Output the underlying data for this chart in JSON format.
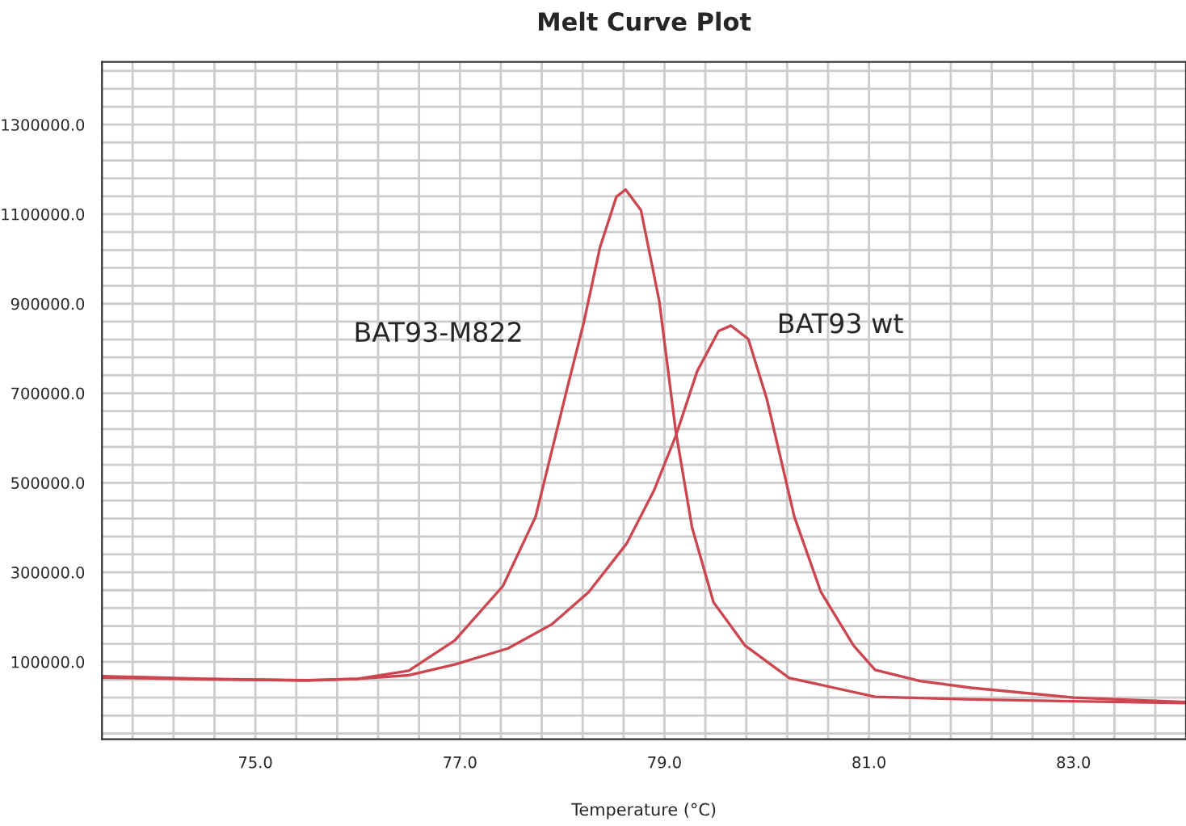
{
  "chart_data": {
    "type": "line",
    "title": "Melt Curve Plot",
    "xlabel": "Temperature (°C)",
    "xlim": [
      73.5,
      84.1
    ],
    "ylim": [
      -73000,
      1440000
    ],
    "xticks": [
      {
        "value": 73.8,
        "label": null
      },
      {
        "value": 74.2,
        "label": null
      },
      {
        "value": 74.6,
        "label": null
      },
      {
        "value": 75.0,
        "label": "75.0"
      },
      {
        "value": 75.4,
        "label": null
      },
      {
        "value": 75.8,
        "label": null
      },
      {
        "value": 76.2,
        "label": null
      },
      {
        "value": 76.6,
        "label": null
      },
      {
        "value": 77.0,
        "label": "77.0"
      },
      {
        "value": 77.4,
        "label": null
      },
      {
        "value": 77.8,
        "label": null
      },
      {
        "value": 78.2,
        "label": null
      },
      {
        "value": 78.6,
        "label": null
      },
      {
        "value": 79.0,
        "label": "79.0"
      },
      {
        "value": 79.4,
        "label": null
      },
      {
        "value": 79.8,
        "label": null
      },
      {
        "value": 80.2,
        "label": null
      },
      {
        "value": 80.6,
        "label": null
      },
      {
        "value": 81.0,
        "label": "81.0"
      },
      {
        "value": 81.4,
        "label": null
      },
      {
        "value": 81.8,
        "label": null
      },
      {
        "value": 82.2,
        "label": null
      },
      {
        "value": 82.6,
        "label": null
      },
      {
        "value": 83.0,
        "label": "83.0"
      },
      {
        "value": 83.4,
        "label": null
      },
      {
        "value": 83.8,
        "label": null
      }
    ],
    "yticks": [
      {
        "value": -60000,
        "label": null
      },
      {
        "value": -20000,
        "label": null
      },
      {
        "value": 20000,
        "label": null
      },
      {
        "value": 60000,
        "label": null
      },
      {
        "value": 100000,
        "label": "100000.0"
      },
      {
        "value": 140000,
        "label": null
      },
      {
        "value": 180000,
        "label": null
      },
      {
        "value": 220000,
        "label": null
      },
      {
        "value": 260000,
        "label": null
      },
      {
        "value": 300000,
        "label": "300000.0"
      },
      {
        "value": 340000,
        "label": null
      },
      {
        "value": 380000,
        "label": null
      },
      {
        "value": 420000,
        "label": null
      },
      {
        "value": 460000,
        "label": null
      },
      {
        "value": 500000,
        "label": "500000.0"
      },
      {
        "value": 540000,
        "label": null
      },
      {
        "value": 580000,
        "label": null
      },
      {
        "value": 620000,
        "label": null
      },
      {
        "value": 660000,
        "label": null
      },
      {
        "value": 700000,
        "label": "700000.0"
      },
      {
        "value": 740000,
        "label": null
      },
      {
        "value": 780000,
        "label": null
      },
      {
        "value": 820000,
        "label": null
      },
      {
        "value": 860000,
        "label": null
      },
      {
        "value": 900000,
        "label": "900000.0"
      },
      {
        "value": 940000,
        "label": null
      },
      {
        "value": 980000,
        "label": null
      },
      {
        "value": 1020000,
        "label": null
      },
      {
        "value": 1060000,
        "label": null
      },
      {
        "value": 1100000,
        "label": "1100000.0"
      },
      {
        "value": 1140000,
        "label": null
      },
      {
        "value": 1180000,
        "label": null
      },
      {
        "value": 1220000,
        "label": null
      },
      {
        "value": 1260000,
        "label": null
      },
      {
        "value": 1300000,
        "label": "1300000.0"
      },
      {
        "value": 1340000,
        "label": null
      },
      {
        "value": 1380000,
        "label": null
      },
      {
        "value": 1420000,
        "label": null
      }
    ],
    "grid": true,
    "legend": false,
    "marker": "none",
    "line_style": "solid",
    "series": [
      {
        "name": "BAT93-M822",
        "color": "#cc4650",
        "x": [
          73.5,
          74.0,
          74.5,
          75.0,
          75.5,
          76.0,
          76.5,
          76.95,
          77.42,
          77.74,
          78.05,
          78.21,
          78.37,
          78.53,
          78.62,
          78.77,
          78.95,
          79.11,
          79.27,
          79.48,
          79.79,
          80.22,
          81.06,
          82.0,
          83.0,
          84.1
        ],
        "values": [
          68000,
          65000,
          62000,
          60000,
          58000,
          62000,
          80000,
          148000,
          269000,
          424000,
          712000,
          857000,
          1026000,
          1139000,
          1155000,
          1109000,
          905000,
          616000,
          400000,
          233000,
          136000,
          64000,
          22000,
          16000,
          12000,
          8000
        ]
      },
      {
        "name": "BAT93 wt",
        "color": "#cc4650",
        "x": [
          73.5,
          74.0,
          74.5,
          75.0,
          75.5,
          76.0,
          76.5,
          76.95,
          77.47,
          77.9,
          78.26,
          78.63,
          78.9,
          79.11,
          79.32,
          79.53,
          79.65,
          79.82,
          80.0,
          80.27,
          80.53,
          80.85,
          81.06,
          81.5,
          82.0,
          83.0,
          84.1
        ],
        "values": [
          65000,
          63000,
          61000,
          60000,
          59000,
          62000,
          70000,
          94000,
          130000,
          184000,
          256000,
          364000,
          484000,
          604000,
          749000,
          839000,
          851000,
          821000,
          688000,
          424000,
          256000,
          136000,
          82000,
          57000,
          42000,
          20000,
          10000
        ]
      }
    ]
  }
}
